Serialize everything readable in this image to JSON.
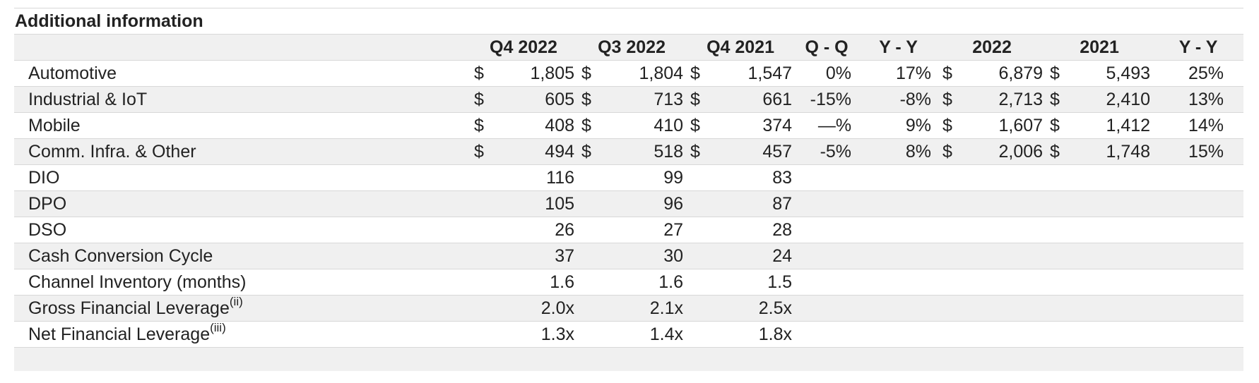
{
  "title": "Additional information",
  "columns": [
    "",
    "Q4 2022",
    "Q3 2022",
    "Q4 2021",
    "Q - Q",
    "Y - Y",
    "2022",
    "2021",
    "Y - Y"
  ],
  "rows": [
    {
      "label": "Automotive",
      "sup": "",
      "cur": [
        "$",
        "$",
        "$"
      ],
      "q4_2022": "1,805",
      "q3_2022": "1,804",
      "q4_2021": "1,547",
      "qq": "0%",
      "yy": "17%",
      "fy_cur": [
        "$",
        "$"
      ],
      "fy2022": "6,879",
      "fy2021": "5,493",
      "fy_yy": "25%"
    },
    {
      "label": "Industrial & IoT",
      "sup": "",
      "cur": [
        "$",
        "$",
        "$"
      ],
      "q4_2022": "605",
      "q3_2022": "713",
      "q4_2021": "661",
      "qq": "-15%",
      "yy": "-8%",
      "fy_cur": [
        "$",
        "$"
      ],
      "fy2022": "2,713",
      "fy2021": "2,410",
      "fy_yy": "13%"
    },
    {
      "label": "Mobile",
      "sup": "",
      "cur": [
        "$",
        "$",
        "$"
      ],
      "q4_2022": "408",
      "q3_2022": "410",
      "q4_2021": "374",
      "qq": "—%",
      "yy": "9%",
      "fy_cur": [
        "$",
        "$"
      ],
      "fy2022": "1,607",
      "fy2021": "1,412",
      "fy_yy": "14%"
    },
    {
      "label": "Comm. Infra. & Other",
      "sup": "",
      "cur": [
        "$",
        "$",
        "$"
      ],
      "q4_2022": "494",
      "q3_2022": "518",
      "q4_2021": "457",
      "qq": "-5%",
      "yy": "8%",
      "fy_cur": [
        "$",
        "$"
      ],
      "fy2022": "2,006",
      "fy2021": "1,748",
      "fy_yy": "15%"
    },
    {
      "label": "DIO",
      "sup": "",
      "cur": [
        "",
        "",
        ""
      ],
      "q4_2022": "116",
      "q3_2022": "99",
      "q4_2021": "83",
      "qq": "",
      "yy": "",
      "fy_cur": [
        "",
        ""
      ],
      "fy2022": "",
      "fy2021": "",
      "fy_yy": ""
    },
    {
      "label": "DPO",
      "sup": "",
      "cur": [
        "",
        "",
        ""
      ],
      "q4_2022": "105",
      "q3_2022": "96",
      "q4_2021": "87",
      "qq": "",
      "yy": "",
      "fy_cur": [
        "",
        ""
      ],
      "fy2022": "",
      "fy2021": "",
      "fy_yy": ""
    },
    {
      "label": "DSO",
      "sup": "",
      "cur": [
        "",
        "",
        ""
      ],
      "q4_2022": "26",
      "q3_2022": "27",
      "q4_2021": "28",
      "qq": "",
      "yy": "",
      "fy_cur": [
        "",
        ""
      ],
      "fy2022": "",
      "fy2021": "",
      "fy_yy": ""
    },
    {
      "label": "Cash Conversion Cycle",
      "sup": "",
      "cur": [
        "",
        "",
        ""
      ],
      "q4_2022": "37",
      "q3_2022": "30",
      "q4_2021": "24",
      "qq": "",
      "yy": "",
      "fy_cur": [
        "",
        ""
      ],
      "fy2022": "",
      "fy2021": "",
      "fy_yy": ""
    },
    {
      "label": "Channel Inventory (months)",
      "sup": "",
      "cur": [
        "",
        "",
        ""
      ],
      "q4_2022": "1.6",
      "q3_2022": "1.6",
      "q4_2021": "1.5",
      "qq": "",
      "yy": "",
      "fy_cur": [
        "",
        ""
      ],
      "fy2022": "",
      "fy2021": "",
      "fy_yy": ""
    },
    {
      "label": "Gross Financial Leverage",
      "sup": "(ii)",
      "cur": [
        "",
        "",
        ""
      ],
      "q4_2022": "2.0x",
      "q3_2022": "2.1x",
      "q4_2021": "2.5x",
      "qq": "",
      "yy": "",
      "fy_cur": [
        "",
        ""
      ],
      "fy2022": "",
      "fy2021": "",
      "fy_yy": ""
    },
    {
      "label": "Net Financial Leverage",
      "sup": "(iii)",
      "cur": [
        "",
        "",
        ""
      ],
      "q4_2022": "1.3x",
      "q3_2022": "1.4x",
      "q4_2021": "1.8x",
      "qq": "",
      "yy": "",
      "fy_cur": [
        "",
        ""
      ],
      "fy2022": "",
      "fy2021": "",
      "fy_yy": ""
    }
  ]
}
